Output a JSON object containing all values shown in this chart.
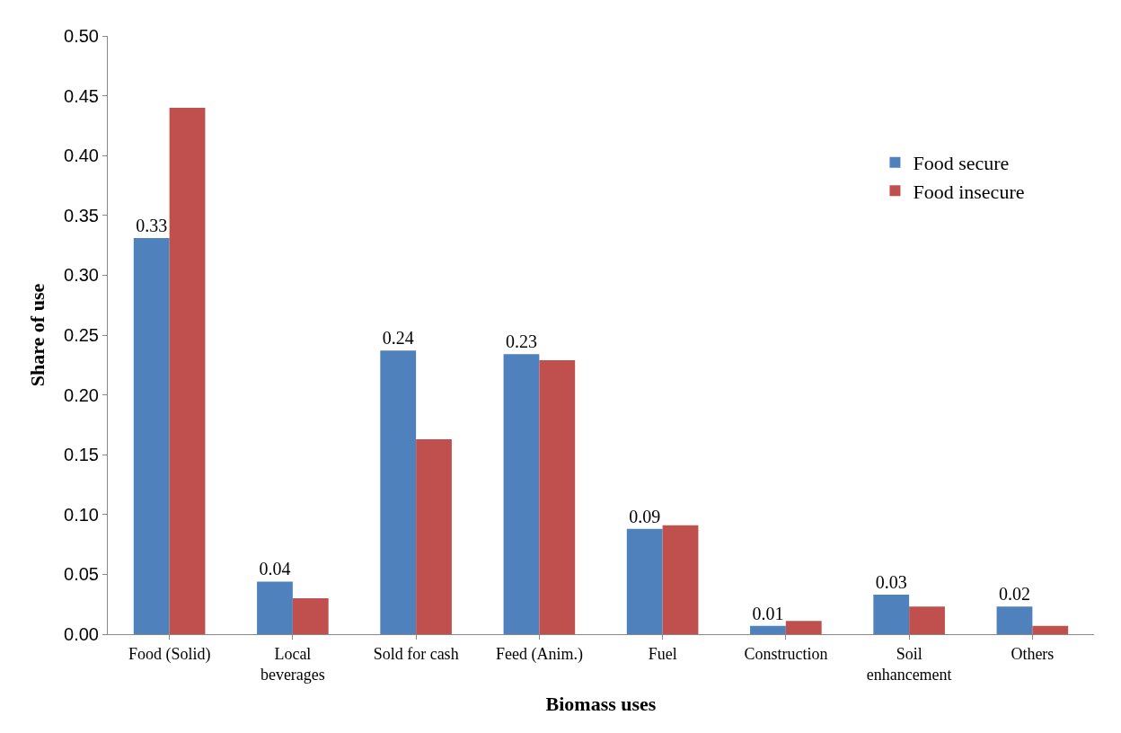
{
  "chart_data": {
    "type": "bar",
    "xlabel": "Biomass uses",
    "ylabel": "Share of use",
    "categories": [
      "Food (Solid)",
      "Local beverages",
      "Sold for cash",
      "Feed (Anim.)",
      "Fuel",
      "Construction",
      "Soil enhancement",
      "Others"
    ],
    "series": [
      {
        "name": "Food secure",
        "color": "#4f81bd",
        "values": [
          0.331,
          0.044,
          0.237,
          0.234,
          0.088,
          0.007,
          0.033,
          0.023
        ],
        "value_labels": [
          "0.33",
          "0.04",
          "0.24",
          "0.23",
          "0.09",
          "0.01",
          "0.03",
          "0.02"
        ]
      },
      {
        "name": "Food insecure",
        "color": "#c0504d",
        "values": [
          0.44,
          0.03,
          0.163,
          0.229,
          0.091,
          0.011,
          0.023,
          0.007
        ]
      }
    ],
    "ylim": [
      0,
      0.5
    ],
    "yticks": [
      {
        "value": 0,
        "label": "0.00"
      },
      {
        "value": 0.05,
        "label": "0.05"
      },
      {
        "value": 0.1,
        "label": "0.10"
      },
      {
        "value": 0.15,
        "label": "0.15"
      },
      {
        "value": 0.2,
        "label": "0.20"
      },
      {
        "value": 0.25,
        "label": "0.25"
      },
      {
        "value": 0.3,
        "label": "0.30"
      },
      {
        "value": 0.35,
        "label": "0.35"
      },
      {
        "value": 0.4,
        "label": "0.40"
      },
      {
        "value": 0.45,
        "label": "0.45"
      },
      {
        "value": 0.5,
        "label": "0.50"
      }
    ],
    "legend": "right"
  }
}
